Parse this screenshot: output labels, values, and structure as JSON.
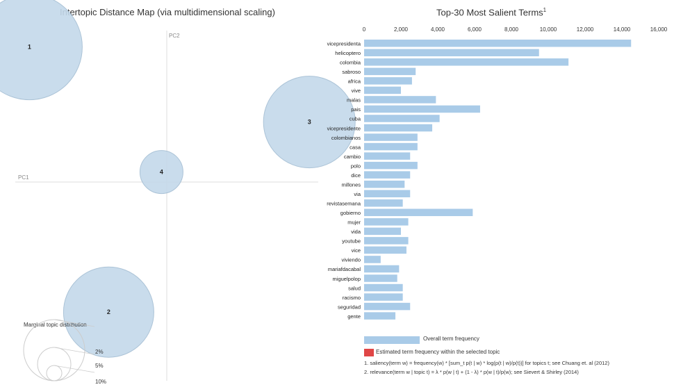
{
  "chart_data": [
    {
      "type": "scatter",
      "title": "Intertopic Distance Map (via multidimensional scaling)",
      "xlabel": "PC1",
      "ylabel": "PC2",
      "topics": [
        {
          "label": "1",
          "x": -0.26,
          "y": 0.27
        },
        {
          "label": "2",
          "x": -0.11,
          "y": -0.26
        },
        {
          "label": "3",
          "x": 0.27,
          "y": 0.12
        },
        {
          "label": "4",
          "x": -0.01,
          "y": 0.02
        }
      ],
      "marginal_legend": {
        "title": "Marginal topic distribution",
        "labels": [
          "2%",
          "5%",
          "10%"
        ]
      }
    },
    {
      "type": "bar",
      "orientation": "horizontal",
      "title": "Top-30 Most Salient Terms",
      "title_superscript": "1",
      "xlim": [
        0,
        16000
      ],
      "ticks": [
        0,
        2000,
        4000,
        6000,
        8000,
        10000,
        12000,
        14000,
        16000
      ],
      "tick_labels": [
        "0",
        "2,000",
        "4,000",
        "6,000",
        "8,000",
        "10,000",
        "12,000",
        "14,000",
        "16,000"
      ],
      "categories": [
        "vicepresidenta",
        "helicoptero",
        "colombia",
        "sabroso",
        "africa",
        "vive",
        "malas",
        "pais",
        "cuba",
        "vicepresidente",
        "colombianos",
        "casa",
        "cambio",
        "polo",
        "dice",
        "millones",
        "via",
        "revistasemana",
        "gobierno",
        "mujer",
        "vida",
        "youtube",
        "vice",
        "viviendo",
        "mariafdacabal",
        "miguelpolop",
        "salud",
        "racismo",
        "seguridad",
        "gente"
      ],
      "values": [
        14500,
        9500,
        11100,
        2800,
        2600,
        2000,
        3900,
        6300,
        4100,
        3700,
        2900,
        2900,
        2500,
        2900,
        2500,
        2200,
        2500,
        2100,
        5900,
        2400,
        2000,
        2400,
        2300,
        900,
        1900,
        1800,
        2100,
        2100,
        2500,
        1700
      ],
      "legend": [
        "Overall term frequency",
        "Estimated term frequency within the selected topic"
      ],
      "colors": {
        "bar": "#a9cbe8",
        "topic_bar": "#e04646",
        "bubble": "#c4d9ea",
        "bubble_stroke": "#a3bdd3"
      }
    }
  ],
  "footnotes": [
    "1. saliency(term w) = frequency(w) * [sum_t p(t | w) * log(p(t | w)/p(t))] for topics t; see Chuang et. al (2012)",
    "2. relevance(term w | topic t) = λ * p(w | t) + (1 - λ) * p(w | t)/p(w); see Sievert & Shirley (2014)"
  ]
}
